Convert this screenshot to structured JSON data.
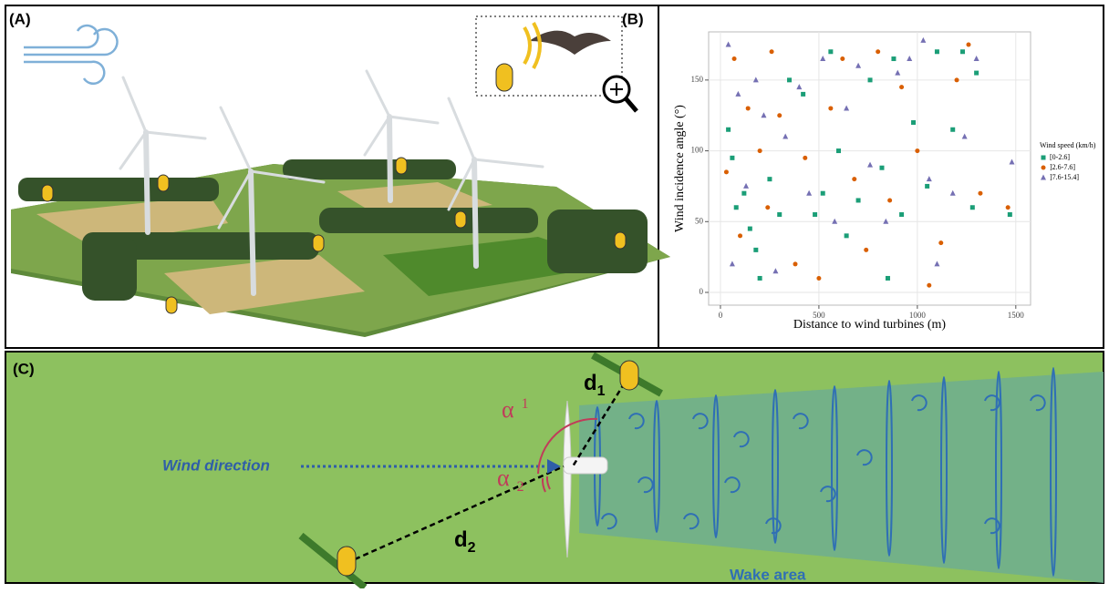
{
  "panel_a": {
    "label": "(A)"
  },
  "panel_b": {
    "label": "(B)"
  },
  "chart_data": {
    "type": "scatter",
    "x_label": "Distance to wind turbines (m)",
    "y_label": "Wind incidence angle (°)",
    "legend_title": "Wind speed (km/h)",
    "xlim": [
      -60,
      1575
    ],
    "ylim": [
      -9,
      184
    ],
    "xticks": [
      0,
      500,
      1000,
      1500
    ],
    "yticks": [
      0,
      50,
      100,
      150
    ],
    "grid": true,
    "series": [
      {
        "name": "[0-2.6]",
        "color": "#1b9e77",
        "marker": "square",
        "x": [
          40,
          60,
          80,
          120,
          150,
          180,
          200,
          250,
          300,
          350,
          420,
          480,
          520,
          560,
          600,
          640,
          700,
          760,
          820,
          880,
          920,
          980,
          1050,
          1100,
          1180,
          1230,
          1280,
          1470,
          1300,
          850
        ],
        "y": [
          115,
          95,
          60,
          70,
          45,
          30,
          10,
          80,
          55,
          150,
          140,
          55,
          70,
          170,
          100,
          40,
          65,
          150,
          88,
          165,
          55,
          120,
          75,
          170,
          115,
          170,
          60,
          55,
          155,
          10
        ]
      },
      {
        "name": "]2.6-7.6]",
        "color": "#d95f02",
        "marker": "circle",
        "x": [
          30,
          70,
          100,
          140,
          200,
          260,
          300,
          380,
          430,
          500,
          560,
          620,
          680,
          740,
          800,
          860,
          920,
          1000,
          1060,
          1120,
          1200,
          1260,
          1320,
          1460,
          240
        ],
        "y": [
          85,
          165,
          40,
          130,
          100,
          170,
          125,
          20,
          95,
          10,
          130,
          165,
          80,
          30,
          170,
          65,
          145,
          100,
          5,
          35,
          150,
          175,
          70,
          60,
          60
        ]
      },
      {
        "name": "]7.6-15.4]",
        "color": "#7570b3",
        "marker": "triangle",
        "x": [
          40,
          60,
          90,
          130,
          180,
          220,
          280,
          330,
          400,
          450,
          520,
          580,
          640,
          700,
          760,
          840,
          900,
          960,
          1030,
          1100,
          1180,
          1240,
          1300,
          1480,
          1060
        ],
        "y": [
          175,
          20,
          140,
          75,
          150,
          125,
          15,
          110,
          145,
          70,
          165,
          50,
          130,
          160,
          90,
          50,
          155,
          165,
          178,
          20,
          70,
          110,
          165,
          92,
          80
        ]
      }
    ]
  },
  "panel_c": {
    "label": "(C)",
    "wind_direction": "Wind direction",
    "alpha_1": {
      "symbol": "α",
      "sub": "1"
    },
    "alpha_2": {
      "symbol": "α",
      "sub": "2"
    },
    "d1": {
      "main": "d",
      "sub": "1"
    },
    "d2": {
      "main": "d",
      "sub": "2"
    },
    "wake_area": "Wake area"
  }
}
